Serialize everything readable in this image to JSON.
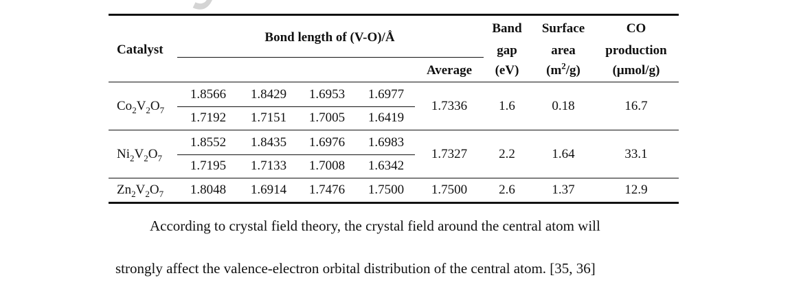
{
  "watermark": "Jo",
  "table": {
    "headers": {
      "catalyst": "Catalyst",
      "bond_length": "Bond length of (V-O)/Å",
      "average": "Average",
      "band_gap_1": "Band",
      "band_gap_2": "gap",
      "band_gap_3": "(eV)",
      "surface_1": "Surface",
      "surface_2": "area",
      "surface_unit_pre": "(m",
      "surface_unit_sup": "2",
      "surface_unit_post": "/g)",
      "co_1": "CO",
      "co_2": "production",
      "co_3": "(μmol/g)"
    },
    "rows": [
      {
        "catalyst": {
          "a": "Co",
          "s1": "2",
          "b": "V",
          "s2": "2",
          "c": "O",
          "s3": "7"
        },
        "bonds_1": [
          "1.8566",
          "1.8429",
          "1.6953",
          "1.6977"
        ],
        "bonds_2": [
          "1.7192",
          "1.7151",
          "1.7005",
          "1.6419"
        ],
        "average": "1.7336",
        "band_gap": "1.6",
        "surface_area": "0.18",
        "co": "16.7"
      },
      {
        "catalyst": {
          "a": "Ni",
          "s1": "2",
          "b": "V",
          "s2": "2",
          "c": "O",
          "s3": "7"
        },
        "bonds_1": [
          "1.8552",
          "1.8435",
          "1.6976",
          "1.6983"
        ],
        "bonds_2": [
          "1.7195",
          "1.7133",
          "1.7008",
          "1.6342"
        ],
        "average": "1.7327",
        "band_gap": "2.2",
        "surface_area": "1.64",
        "co": "33.1"
      },
      {
        "catalyst": {
          "a": "Zn",
          "s1": "2",
          "b": "V",
          "s2": "2",
          "c": "O",
          "s3": "7"
        },
        "bonds_1": [
          "1.8048",
          "1.6914",
          "1.7476",
          "1.7500"
        ],
        "average": "1.7500",
        "band_gap": "2.6",
        "surface_area": "1.37",
        "co": "12.9"
      }
    ]
  },
  "text": {
    "line1": "According to crystal field theory, the crystal field around the central atom will",
    "line2": "strongly affect the valence-electron orbital distribution of the central atom. [35, 36]"
  }
}
